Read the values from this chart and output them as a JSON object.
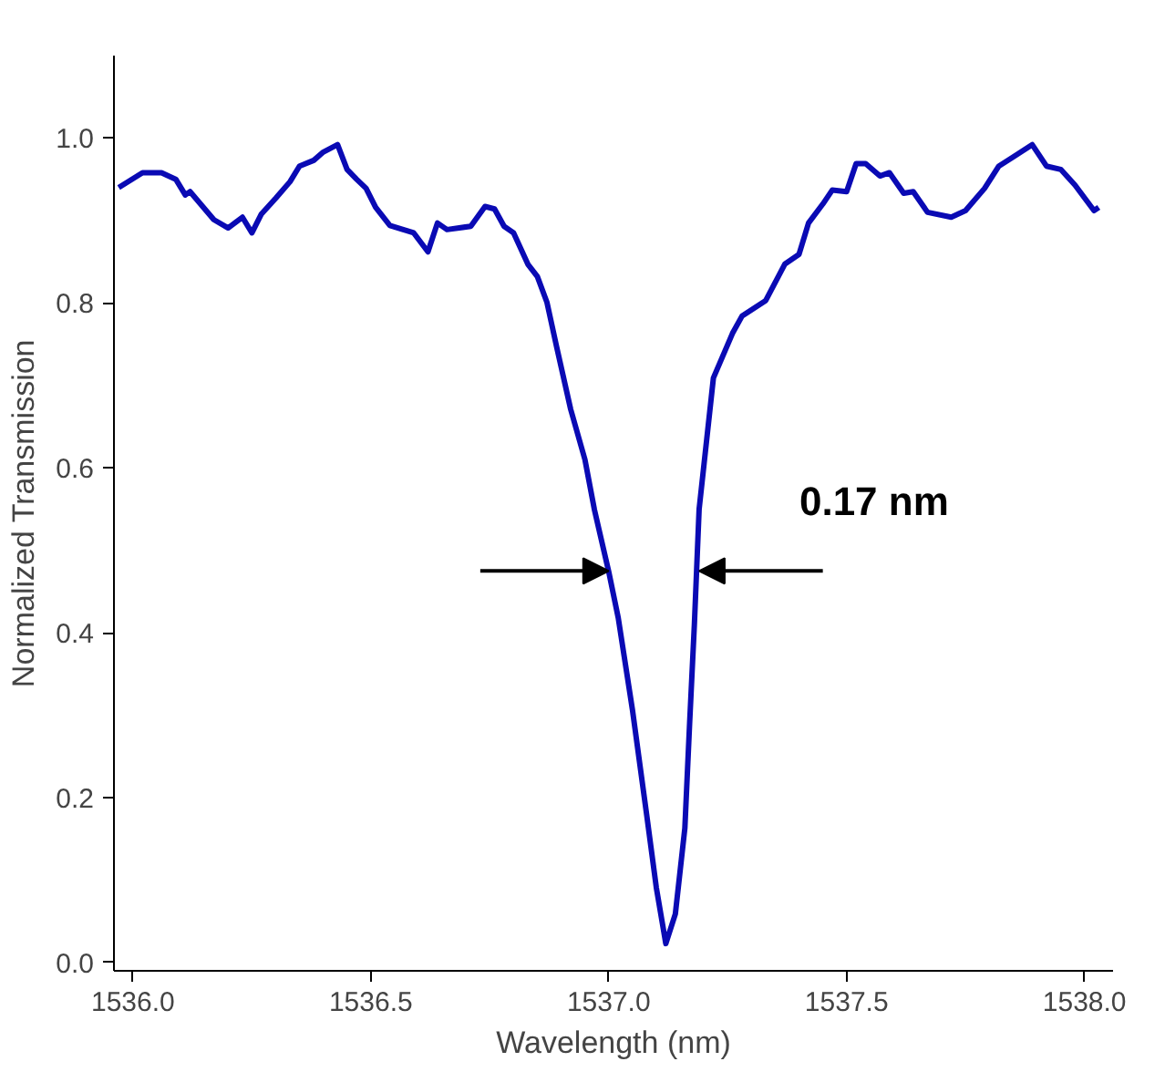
{
  "chart_data": {
    "type": "line",
    "xlabel": "Wavelength (nm)",
    "ylabel": "Normalized Transmission",
    "xlim": [
      1535.96,
      1538.06
    ],
    "ylim": [
      -0.01,
      1.1
    ],
    "xticks": [
      {
        "value": 1536.0,
        "label": "1536.0"
      },
      {
        "value": 1536.5,
        "label": "1536.5"
      },
      {
        "value": 1537.0,
        "label": "1537.0"
      },
      {
        "value": 1537.5,
        "label": "1537.5"
      },
      {
        "value": 1538.0,
        "label": "1538.0"
      }
    ],
    "yticks": [
      {
        "value": 0.0,
        "label": "0.0"
      },
      {
        "value": 0.2,
        "label": "0.2"
      },
      {
        "value": 0.4,
        "label": "0.4"
      },
      {
        "value": 0.6,
        "label": "0.6"
      },
      {
        "value": 0.8,
        "label": "0.8"
      },
      {
        "value": 1.0,
        "label": "1.0"
      }
    ],
    "grid": false,
    "marker": "none",
    "line_style": "solid",
    "annotations": [
      {
        "text": "0.17 nm",
        "x": 1537.19,
        "y": 0.475
      }
    ],
    "series": [
      {
        "color": "#0a0ab4",
        "x": [
          1535.97,
          1536.02,
          1536.06,
          1536.09,
          1536.11,
          1536.12,
          1536.17,
          1536.2,
          1536.23,
          1536.25,
          1536.27,
          1536.3,
          1536.33,
          1536.35,
          1536.38,
          1536.4,
          1536.43,
          1536.45,
          1536.47,
          1536.49,
          1536.51,
          1536.54,
          1536.59,
          1536.62,
          1536.64,
          1536.66,
          1536.71,
          1536.74,
          1536.76,
          1536.78,
          1536.8,
          1536.83,
          1536.85,
          1536.87,
          1536.89,
          1536.92,
          1536.95,
          1536.97,
          1537.0,
          1537.02,
          1537.05,
          1537.08,
          1537.1,
          1537.12,
          1537.14,
          1537.16,
          1537.17,
          1537.18,
          1537.19,
          1537.22,
          1537.26,
          1537.28,
          1537.33,
          1537.37,
          1537.4,
          1537.42,
          1537.45,
          1537.47,
          1537.5,
          1537.52,
          1537.54,
          1537.57,
          1537.59,
          1537.62,
          1537.64,
          1537.67,
          1537.72,
          1537.75,
          1537.79,
          1537.82,
          1537.85,
          1537.89,
          1537.92,
          1537.95,
          1537.98,
          1538.02,
          1538.03
        ],
        "values": [
          0.94,
          0.958,
          0.958,
          0.95,
          0.931,
          0.935,
          0.901,
          0.891,
          0.904,
          0.885,
          0.908,
          0.927,
          0.947,
          0.966,
          0.973,
          0.983,
          0.992,
          0.962,
          0.95,
          0.939,
          0.916,
          0.894,
          0.885,
          0.862,
          0.897,
          0.889,
          0.893,
          0.917,
          0.914,
          0.893,
          0.885,
          0.847,
          0.832,
          0.801,
          0.748,
          0.671,
          0.61,
          0.549,
          0.474,
          0.418,
          0.306,
          0.178,
          0.091,
          0.023,
          0.059,
          0.163,
          0.29,
          0.41,
          0.55,
          0.709,
          0.763,
          0.784,
          0.803,
          0.847,
          0.859,
          0.897,
          0.92,
          0.937,
          0.935,
          0.969,
          0.969,
          0.954,
          0.958,
          0.933,
          0.935,
          0.91,
          0.904,
          0.912,
          0.939,
          0.966,
          0.977,
          0.992,
          0.966,
          0.962,
          0.943,
          0.912,
          0.916
        ]
      }
    ]
  }
}
